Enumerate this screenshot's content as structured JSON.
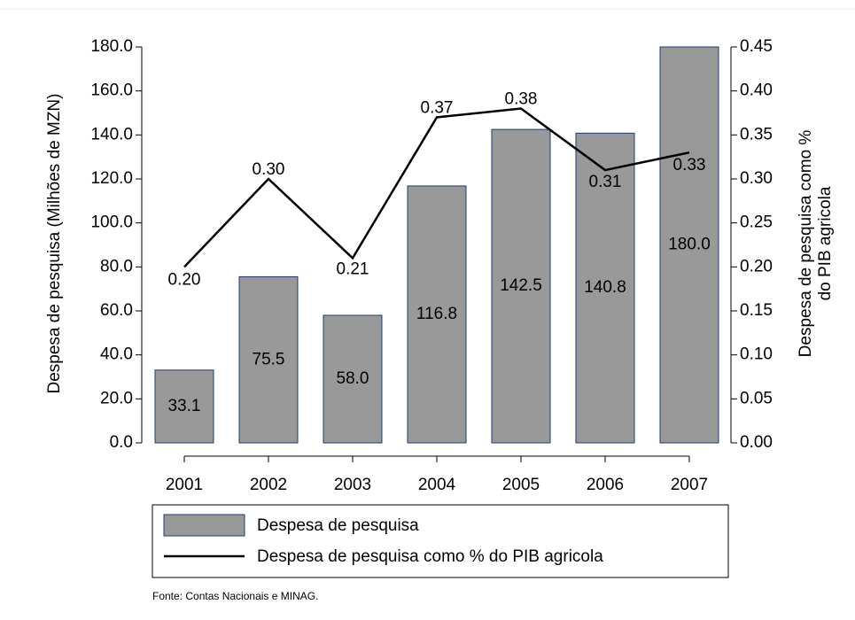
{
  "chart_data": {
    "type": "bar_line",
    "categories": [
      "2001",
      "2002",
      "2003",
      "2004",
      "2005",
      "2006",
      "2007"
    ],
    "series": [
      {
        "name": "Despesa de pesquisa",
        "type": "bar",
        "color": "#999999",
        "axis": "y",
        "values": [
          33.1,
          75.5,
          58.0,
          116.8,
          142.5,
          140.8,
          180.0
        ],
        "value_labels": [
          "33.1",
          "75.5",
          "58.0",
          "116.8",
          "142.5",
          "140.8",
          "180.0"
        ]
      },
      {
        "name": "Despesa de pesquisa como % do PIB agricola",
        "type": "line",
        "color": "#000000",
        "axis": "y2",
        "values": [
          0.2,
          0.3,
          0.21,
          0.37,
          0.38,
          0.31,
          0.33
        ],
        "value_labels": [
          "0.20",
          "0.30",
          "0.21",
          "0.37",
          "0.38",
          "0.31",
          "0.33"
        ]
      }
    ],
    "ylabel": "Despesa de pesquisa (Milhões de MZN)",
    "y2label": [
      "Despesa de pesquisa como %",
      "do PIB agricola"
    ],
    "ylim": [
      0,
      180
    ],
    "yticks": [
      {
        "value": 0,
        "label": "0.0"
      },
      {
        "value": 20,
        "label": "20.0"
      },
      {
        "value": 40,
        "label": "40.0"
      },
      {
        "value": 60,
        "label": "60.0"
      },
      {
        "value": 80,
        "label": "80.0"
      },
      {
        "value": 100,
        "label": "100.0"
      },
      {
        "value": 120,
        "label": "120.0"
      },
      {
        "value": 140,
        "label": "140.0"
      },
      {
        "value": 160,
        "label": "160.0"
      },
      {
        "value": 180,
        "label": "180.0"
      }
    ],
    "y2lim": [
      0,
      0.45
    ],
    "y2ticks": [
      {
        "value": 0,
        "label": "0.00"
      },
      {
        "value": 0.05,
        "label": "0.05"
      },
      {
        "value": 0.1,
        "label": "0.10"
      },
      {
        "value": 0.15,
        "label": "0.15"
      },
      {
        "value": 0.2,
        "label": "0.20"
      },
      {
        "value": 0.25,
        "label": "0.25"
      },
      {
        "value": 0.3,
        "label": "0.30"
      },
      {
        "value": 0.35,
        "label": "0.35"
      },
      {
        "value": 0.4,
        "label": "0.40"
      },
      {
        "value": 0.45,
        "label": "0.45"
      }
    ],
    "grid": false,
    "legend": "bottom",
    "note": "Fonte: Contas Nacionais e MINAG."
  }
}
